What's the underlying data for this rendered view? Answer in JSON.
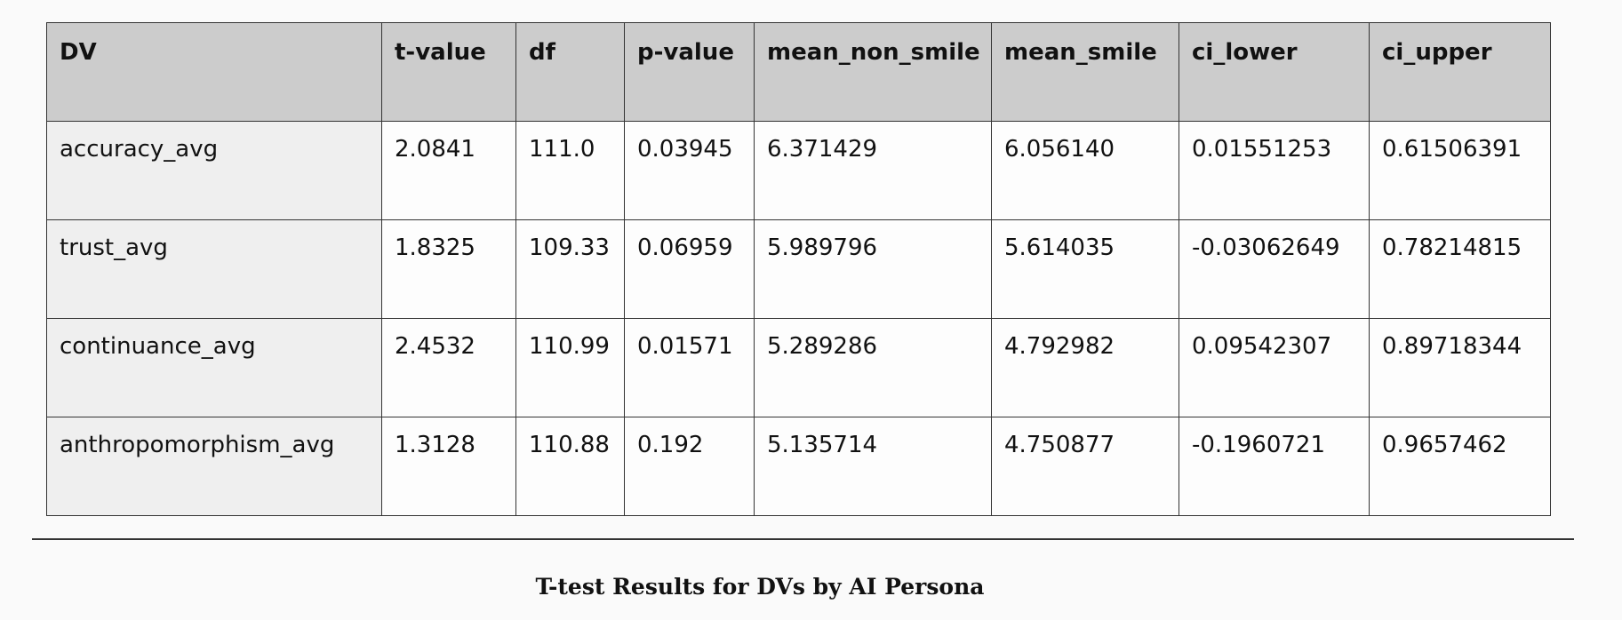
{
  "table": {
    "headers": [
      "DV",
      "t-value",
      "df",
      "p-value",
      "mean_non_smile",
      "mean_smile",
      "ci_lower",
      "ci_upper"
    ],
    "rows": [
      [
        "accuracy_avg",
        "2.0841",
        "111.0",
        "0.03945",
        "6.371429",
        "6.056140",
        "0.01551253",
        "0.61506391"
      ],
      [
        "trust_avg",
        "1.8325",
        "109.33",
        "0.06959",
        "5.989796",
        "5.614035",
        "-0.03062649",
        "0.78214815"
      ],
      [
        "continuance_avg",
        "2.4532",
        "110.99",
        "0.01571",
        "5.289286",
        "4.792982",
        "0.09542307",
        "0.89718344"
      ],
      [
        "anthropomorphism_avg",
        "1.3128",
        "110.88",
        "0.192",
        "5.135714",
        "4.750877",
        "-0.1960721",
        "0.9657462"
      ]
    ]
  },
  "caption": "T-test Results for DVs by AI Persona"
}
